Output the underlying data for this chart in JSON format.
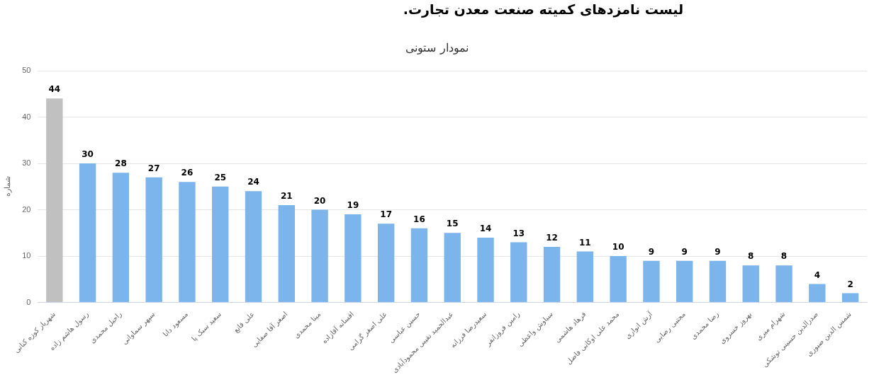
{
  "chart_data": {
    "type": "bar",
    "title": "لیست نامزدهای کمیته صنعت معدن تجارت.",
    "subtitle": "نمودار ستونی",
    "ylabel": "شماره",
    "categories": [
      "شهریار کوزه کنانی",
      "رسول هاشم زاده",
      "راحیل محمدی",
      "سپهر سماواتی",
      "مسعود دانا",
      "سعید سبک پا",
      "علی قانع",
      "اصغر آقا صفایی",
      "مینا محمدی",
      "افسانه آقازاده",
      "علی اصغر گرامی",
      "حسین عباسی",
      "عبدالحمید نقیبی محمودآبادی",
      "سعیدرضا فرزانه",
      "رامین فروزانفر",
      "سیاوش واعظی",
      "فرهاد هاشمی",
      "محمد علی اوکانی فاضل",
      "آرش انواری",
      "مجتبی رضایی",
      "رضا محمدی",
      "بهروز خسروی",
      "شهرام میری",
      "صدرالدین حسینی توشکی",
      "شمس الدین صبوری"
    ],
    "values": [
      44,
      30,
      28,
      27,
      26,
      25,
      24,
      21,
      20,
      19,
      17,
      16,
      15,
      14,
      13,
      12,
      11,
      10,
      9,
      9,
      9,
      8,
      8,
      4,
      2
    ],
    "colors": [
      "#c0c0c0",
      "#7cb5ec",
      "#7cb5ec",
      "#7cb5ec",
      "#7cb5ec",
      "#7cb5ec",
      "#7cb5ec",
      "#7cb5ec",
      "#7cb5ec",
      "#7cb5ec",
      "#7cb5ec",
      "#7cb5ec",
      "#7cb5ec",
      "#7cb5ec",
      "#7cb5ec",
      "#7cb5ec",
      "#7cb5ec",
      "#7cb5ec",
      "#7cb5ec",
      "#7cb5ec",
      "#7cb5ec",
      "#7cb5ec",
      "#7cb5ec",
      "#7cb5ec",
      "#7cb5ec"
    ],
    "ylim": [
      0,
      50
    ],
    "yticks": [
      0,
      10,
      20,
      30,
      40,
      50
    ],
    "grid": "y",
    "legend": false,
    "data_labels": true
  }
}
